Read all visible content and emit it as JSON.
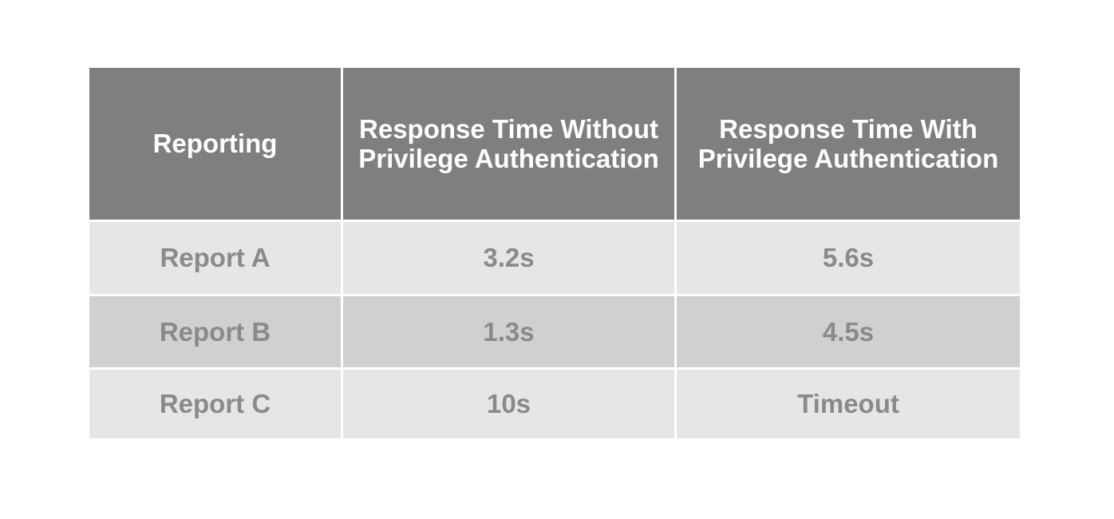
{
  "table": {
    "header": [
      {
        "label": "Reporting",
        "lines": [
          "Reporting"
        ]
      },
      {
        "label": "Response Time Without Privilege Authentication",
        "lines": [
          "Response Time Without",
          "Privilege Authentication"
        ]
      },
      {
        "label": "Response Time With Privilege Authentication",
        "lines": [
          "Response Time With",
          "Privilege Authentication"
        ]
      }
    ],
    "rows": [
      {
        "cells": [
          "Report A",
          "3.2s",
          "5.6s"
        ]
      },
      {
        "cells": [
          "Report B",
          "1.3s",
          "4.5s"
        ]
      },
      {
        "cells": [
          "Report C",
          "10s",
          "Timeout"
        ]
      }
    ],
    "colors": {
      "header_bg": "#7f7f7f",
      "header_text": "#ffffff",
      "row_light_bg": "#e6e6e6",
      "row_mid_bg": "#d0d0d0",
      "row_text": "#8a8a8a",
      "gutter": "#ffffff"
    }
  },
  "chart_data": {
    "type": "table",
    "columns": [
      "Reporting",
      "Response Time Without Privilege Authentication",
      "Response Time With Privilege Authentication"
    ],
    "rows": [
      [
        "Report A",
        "3.2s",
        "5.6s"
      ],
      [
        "Report B",
        "1.3s",
        "4.5s"
      ],
      [
        "Report C",
        "10s",
        "Timeout"
      ]
    ],
    "units": "seconds",
    "values_numeric": {
      "without_privilege_auth": [
        3.2,
        1.3,
        10
      ],
      "with_privilege_auth": [
        5.6,
        4.5,
        null
      ]
    },
    "notes": "Report C with privilege authentication shows Timeout instead of a numeric value"
  }
}
